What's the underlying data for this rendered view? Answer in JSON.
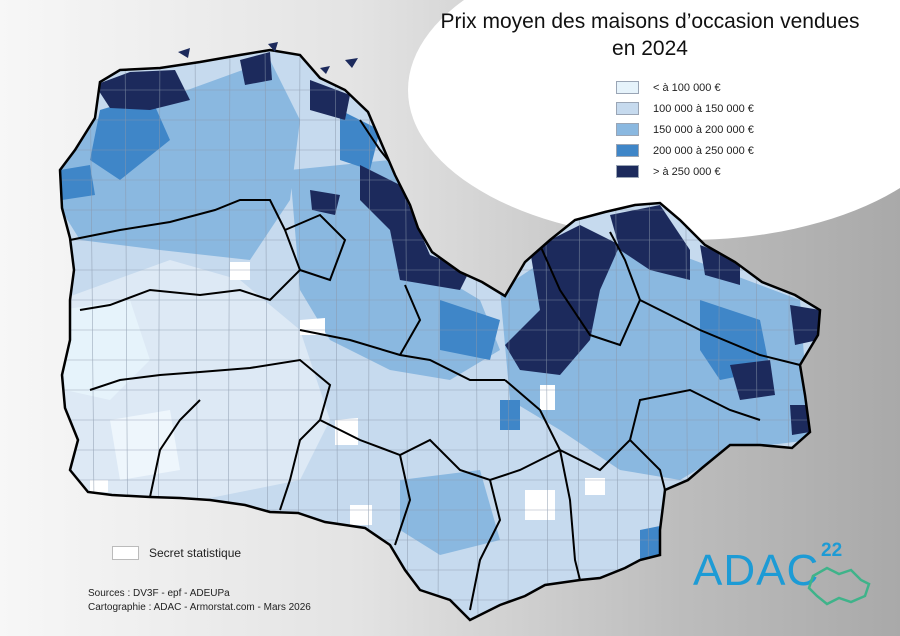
{
  "title": {
    "line1": "Prix moyen des maisons d’occasion vendues",
    "line2": "en 2024"
  },
  "legend": [
    {
      "label": "< à 100 000 €",
      "color": "#e6f3fb"
    },
    {
      "label": "100 000 à 150 000 €",
      "color": "#c6daee"
    },
    {
      "label": "150 000 à 200 000 €",
      "color": "#8ab8e0"
    },
    {
      "label": "200 000 à 250 000 €",
      "color": "#3f86c8"
    },
    {
      "label": "> à 250 000 €",
      "color": "#1c2a5c"
    }
  ],
  "secret_label": "Secret statistique",
  "credits": {
    "sources": "Sources : DV3F - epf - ADEUPa",
    "cartography": "Cartographie : ADAC - Armorstat.com - Mars 2026"
  },
  "logo": {
    "text": "ADAC",
    "number": "22",
    "color": "#1d9bd5"
  },
  "map": {
    "name": "Côtes-d'Armor communes choropleth",
    "border_color": "#000000"
  }
}
